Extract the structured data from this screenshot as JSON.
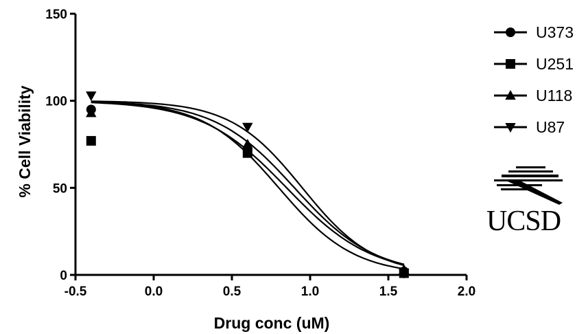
{
  "chart_data": {
    "type": "scatter",
    "title": "",
    "xlabel": "Drug conc (uM)",
    "ylabel": "% Cell Viability",
    "xlim": [
      -0.5,
      2.0
    ],
    "ylim": [
      0,
      150
    ],
    "xticks": [
      -0.5,
      0.0,
      0.5,
      1.0,
      1.5,
      2.0
    ],
    "xtick_labels": [
      "-0.5",
      "0.0",
      "0.5",
      "1.0",
      "1.5",
      "2.0"
    ],
    "yticks": [
      0,
      50,
      100,
      150
    ],
    "ytick_labels": [
      "0",
      "50",
      "100",
      "150"
    ],
    "grid": false,
    "legend_position": "top-right",
    "series": [
      {
        "name": "U373",
        "marker": "circle",
        "color": "#000000",
        "points": [
          {
            "x": -0.4,
            "y": 95
          },
          {
            "x": 0.6,
            "y": 72
          },
          {
            "x": 1.6,
            "y": 2
          }
        ],
        "fit": {
          "top": 100,
          "bottom": 0,
          "logEC50": 0.85,
          "hill": -1.6
        }
      },
      {
        "name": "U251",
        "marker": "square",
        "color": "#000000",
        "points": [
          {
            "x": -0.4,
            "y": 77
          },
          {
            "x": 0.6,
            "y": 70
          },
          {
            "x": 1.6,
            "y": 1
          }
        ],
        "fit": {
          "top": 100,
          "bottom": 0,
          "logEC50": 0.8,
          "hill": -1.8
        }
      },
      {
        "name": "U118",
        "marker": "triangle-up",
        "color": "#000000",
        "points": [
          {
            "x": -0.4,
            "y": 93
          },
          {
            "x": 0.6,
            "y": 75
          },
          {
            "x": 1.6,
            "y": 3
          }
        ],
        "fit": {
          "top": 100,
          "bottom": 0,
          "logEC50": 0.9,
          "hill": -1.7
        }
      },
      {
        "name": "U87",
        "marker": "triangle-down",
        "color": "#000000",
        "points": [
          {
            "x": -0.4,
            "y": 103
          },
          {
            "x": 0.6,
            "y": 85
          },
          {
            "x": 1.6,
            "y": 1
          }
        ],
        "fit": {
          "top": 100,
          "bottom": 0,
          "logEC50": 0.95,
          "hill": -1.9
        }
      }
    ]
  },
  "logo": {
    "text": "UCSD",
    "icon": "ucsd-trident-logo-icon"
  }
}
